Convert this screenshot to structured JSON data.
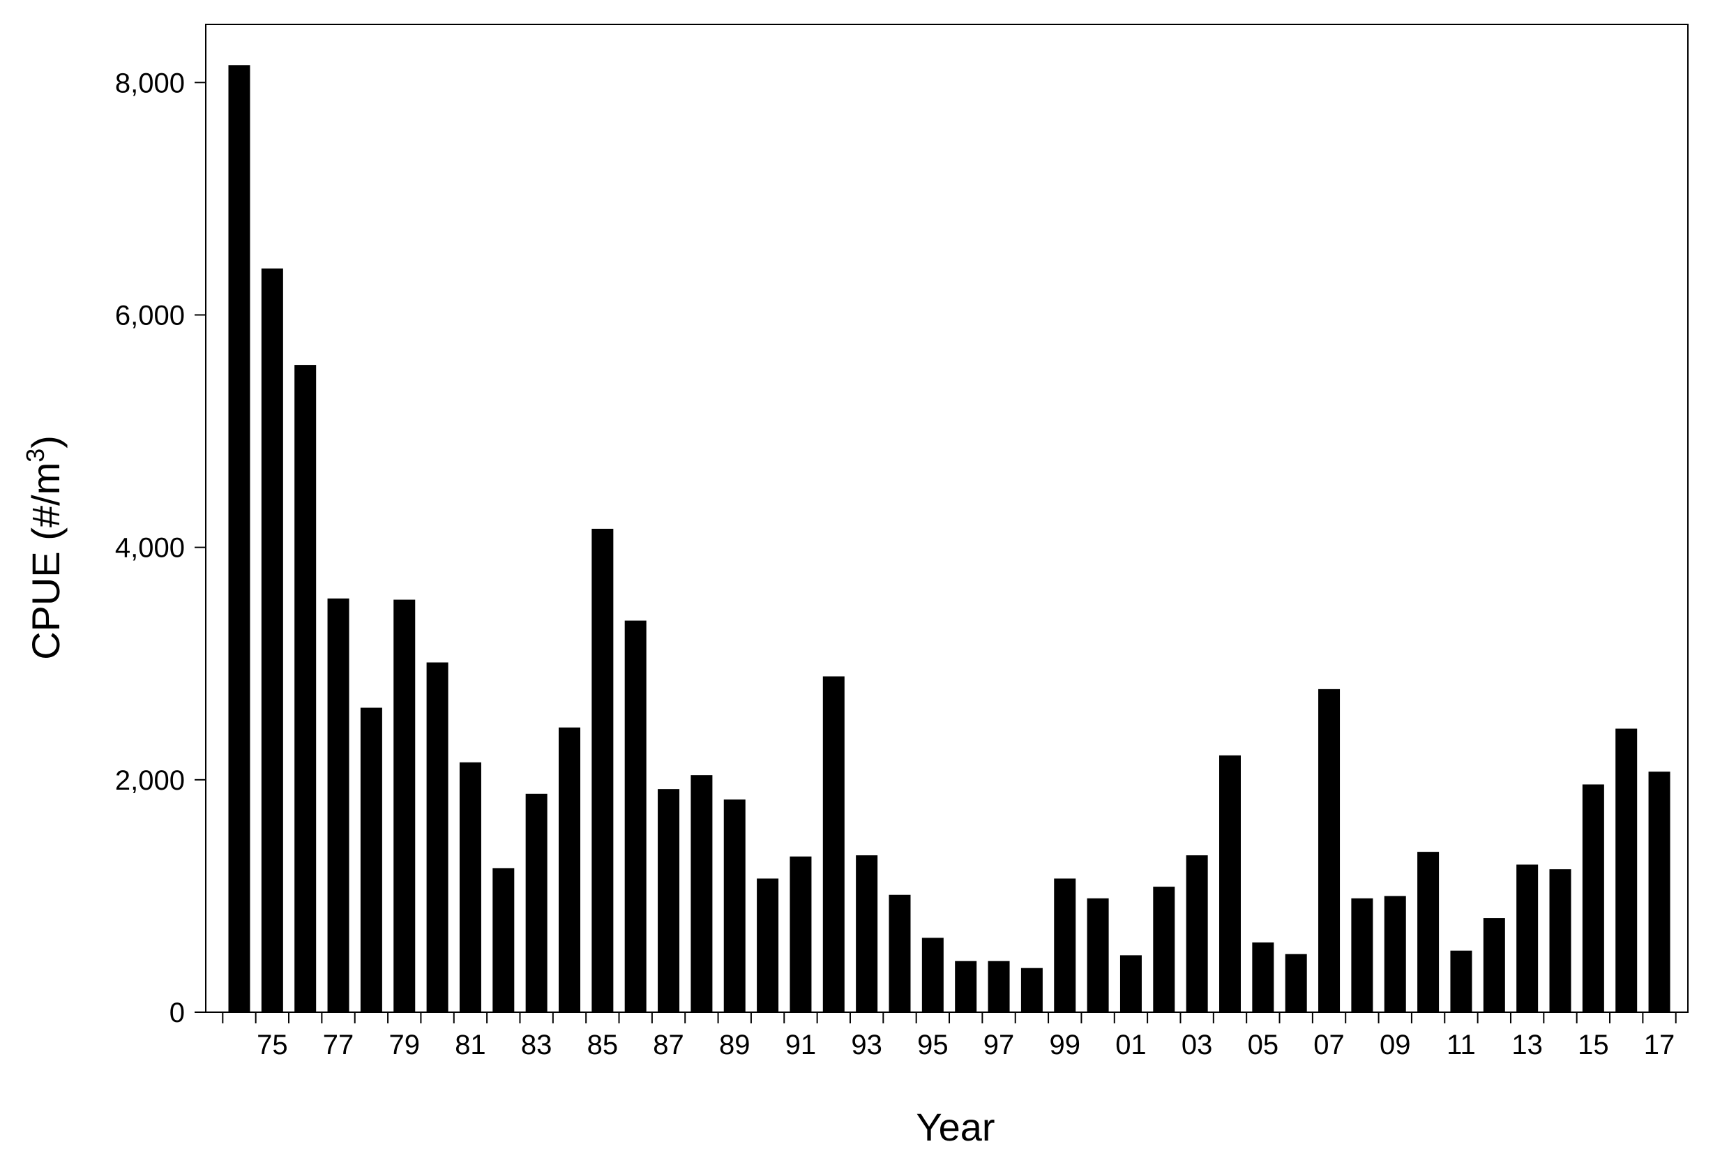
{
  "chart_data": {
    "type": "bar",
    "xlabel": "Year",
    "ylabel": "CPUE (#/m",
    "ylabel_superscript": "3",
    "ylabel_close": ")",
    "ylim": [
      0,
      8500
    ],
    "yticks": [
      0,
      2000,
      4000,
      6000,
      8000
    ],
    "ytick_labels": [
      "0",
      "2,000",
      "4,000",
      "6,000",
      "8,000"
    ],
    "grid": false,
    "bar_color": "#000000",
    "categories": [
      "1974",
      "1975",
      "1976",
      "1977",
      "1978",
      "1979",
      "1980",
      "1981",
      "1982",
      "1983",
      "1984",
      "1985",
      "1986",
      "1987",
      "1988",
      "1989",
      "1990",
      "1991",
      "1992",
      "1993",
      "1994",
      "1995",
      "1996",
      "1997",
      "1998",
      "1999",
      "2000",
      "2001",
      "2002",
      "2003",
      "2004",
      "2005",
      "2006",
      "2007",
      "2008",
      "2009",
      "2010",
      "2011",
      "2012",
      "2013",
      "2014",
      "2015",
      "2016",
      "2017"
    ],
    "xtick_labels": [
      "75",
      "77",
      "79",
      "81",
      "83",
      "85",
      "87",
      "89",
      "91",
      "93",
      "95",
      "97",
      "99",
      "01",
      "03",
      "05",
      "07",
      "09",
      "11",
      "13",
      "15",
      "17"
    ],
    "xtick_label_categories": [
      "1975",
      "1977",
      "1979",
      "1981",
      "1983",
      "1985",
      "1987",
      "1989",
      "1991",
      "1993",
      "1995",
      "1997",
      "1999",
      "2001",
      "2003",
      "2005",
      "2007",
      "2009",
      "2011",
      "2013",
      "2015",
      "2017"
    ],
    "values": [
      8150,
      6400,
      5570,
      3560,
      2620,
      3550,
      3010,
      2150,
      1240,
      1880,
      2450,
      4160,
      3370,
      1920,
      2040,
      1830,
      1150,
      1340,
      2890,
      1350,
      1010,
      640,
      440,
      440,
      380,
      1150,
      980,
      490,
      1080,
      1350,
      2210,
      600,
      500,
      2780,
      980,
      1000,
      1380,
      530,
      810,
      1270,
      1230,
      1960,
      2440,
      2070
    ]
  }
}
